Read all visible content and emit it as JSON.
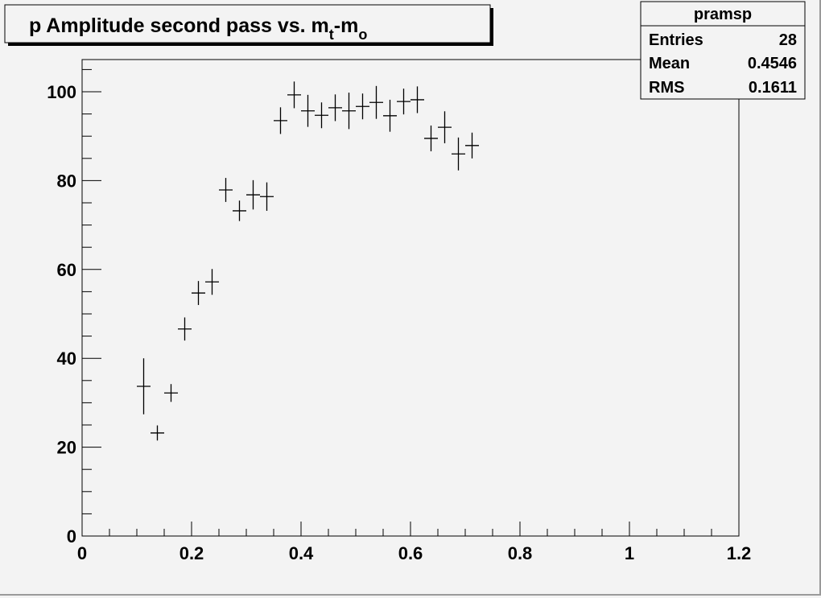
{
  "chart_data": {
    "type": "scatter",
    "title": "p Amplitude second pass vs. m",
    "title_sub1": "t",
    "title_mid": "-m",
    "title_sub2": "o",
    "xlabel": "",
    "ylabel": "",
    "xlim": [
      0,
      1.2
    ],
    "ylim": [
      0,
      107
    ],
    "grid": false,
    "x_ticks": [
      "0",
      "0.2",
      "0.4",
      "0.6",
      "0.8",
      "1",
      "1.2"
    ],
    "y_ticks": [
      "0",
      "20",
      "40",
      "60",
      "80",
      "100"
    ],
    "x_halfwidth": 0.0125,
    "points": [
      {
        "x": 0.1125,
        "y": 33.7,
        "err": 6.3
      },
      {
        "x": 0.1375,
        "y": 23.2,
        "err": 1.7
      },
      {
        "x": 0.1625,
        "y": 32.2,
        "err": 2.0
      },
      {
        "x": 0.1875,
        "y": 46.6,
        "err": 2.6
      },
      {
        "x": 0.2125,
        "y": 54.7,
        "err": 2.7
      },
      {
        "x": 0.2375,
        "y": 57.2,
        "err": 2.9
      },
      {
        "x": 0.2625,
        "y": 77.9,
        "err": 2.7
      },
      {
        "x": 0.2875,
        "y": 73.2,
        "err": 2.3
      },
      {
        "x": 0.3125,
        "y": 76.8,
        "err": 3.3
      },
      {
        "x": 0.3375,
        "y": 76.4,
        "err": 3.2
      },
      {
        "x": 0.3625,
        "y": 93.5,
        "err": 3.0
      },
      {
        "x": 0.3875,
        "y": 99.3,
        "err": 3.0
      },
      {
        "x": 0.4125,
        "y": 95.7,
        "err": 3.6
      },
      {
        "x": 0.4375,
        "y": 94.7,
        "err": 2.9
      },
      {
        "x": 0.4625,
        "y": 96.4,
        "err": 3.0
      },
      {
        "x": 0.4875,
        "y": 95.7,
        "err": 4.1
      },
      {
        "x": 0.5125,
        "y": 96.7,
        "err": 2.9
      },
      {
        "x": 0.5375,
        "y": 97.6,
        "err": 3.7
      },
      {
        "x": 0.5625,
        "y": 94.6,
        "err": 3.6
      },
      {
        "x": 0.5875,
        "y": 97.8,
        "err": 2.9
      },
      {
        "x": 0.6125,
        "y": 98.2,
        "err": 3.0
      },
      {
        "x": 0.6375,
        "y": 89.5,
        "err": 2.9
      },
      {
        "x": 0.6625,
        "y": 92.0,
        "err": 3.6
      },
      {
        "x": 0.6875,
        "y": 86.0,
        "err": 3.7
      },
      {
        "x": 0.7125,
        "y": 87.9,
        "err": 2.9
      }
    ],
    "stats": {
      "name": "pramsp",
      "rows": [
        {
          "label": "Entries",
          "value": "28"
        },
        {
          "label": "Mean",
          "value": "0.4546"
        },
        {
          "label": "RMS",
          "value": "0.1611"
        }
      ]
    }
  }
}
